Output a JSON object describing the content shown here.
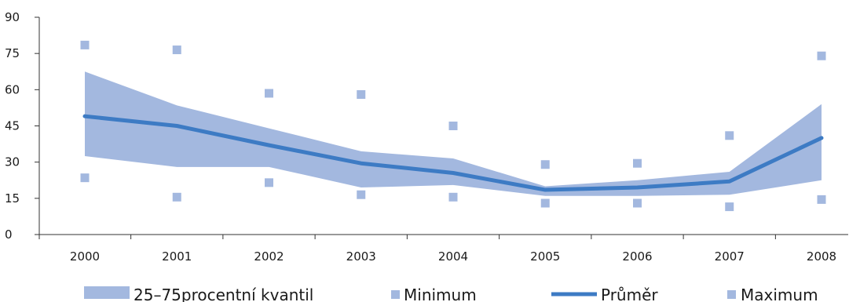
{
  "colors": {
    "band": "#a3b8df",
    "line": "#3d7bc4",
    "marker": "#a3b8df",
    "axis": "#333333"
  },
  "chart_data": {
    "type": "line",
    "categories": [
      "2000",
      "2001",
      "2002",
      "2003",
      "2004",
      "2005",
      "2006",
      "2007",
      "2008"
    ],
    "ylim": [
      0,
      90
    ],
    "yticks": [
      "0",
      "15",
      "30",
      "45",
      "60",
      "75",
      "90"
    ],
    "band": {
      "name": "25–75procentní kvantil",
      "upper": [
        67.5,
        53.5,
        44,
        34.5,
        31.5,
        20,
        22.5,
        26,
        54
      ],
      "lower": [
        32.5,
        28,
        28,
        19.5,
        20.5,
        16,
        16,
        16.5,
        22.5
      ]
    },
    "series": [
      {
        "name": "Průměr",
        "values": [
          49,
          45,
          37,
          29.5,
          25.5,
          18.5,
          19.5,
          22,
          40
        ]
      },
      {
        "name": "Minimum",
        "values": [
          23.5,
          15.5,
          21.5,
          16.5,
          15.5,
          13,
          13,
          11.5,
          14.5
        ]
      },
      {
        "name": "Maximum",
        "values": [
          78.5,
          76.5,
          58.5,
          58,
          45,
          29,
          29.5,
          41,
          74
        ]
      }
    ],
    "legend": {
      "placement": "bottom",
      "labels": [
        "25–75procentní kvantil",
        "Minimum",
        "Průměr",
        "Maximum"
      ]
    }
  }
}
